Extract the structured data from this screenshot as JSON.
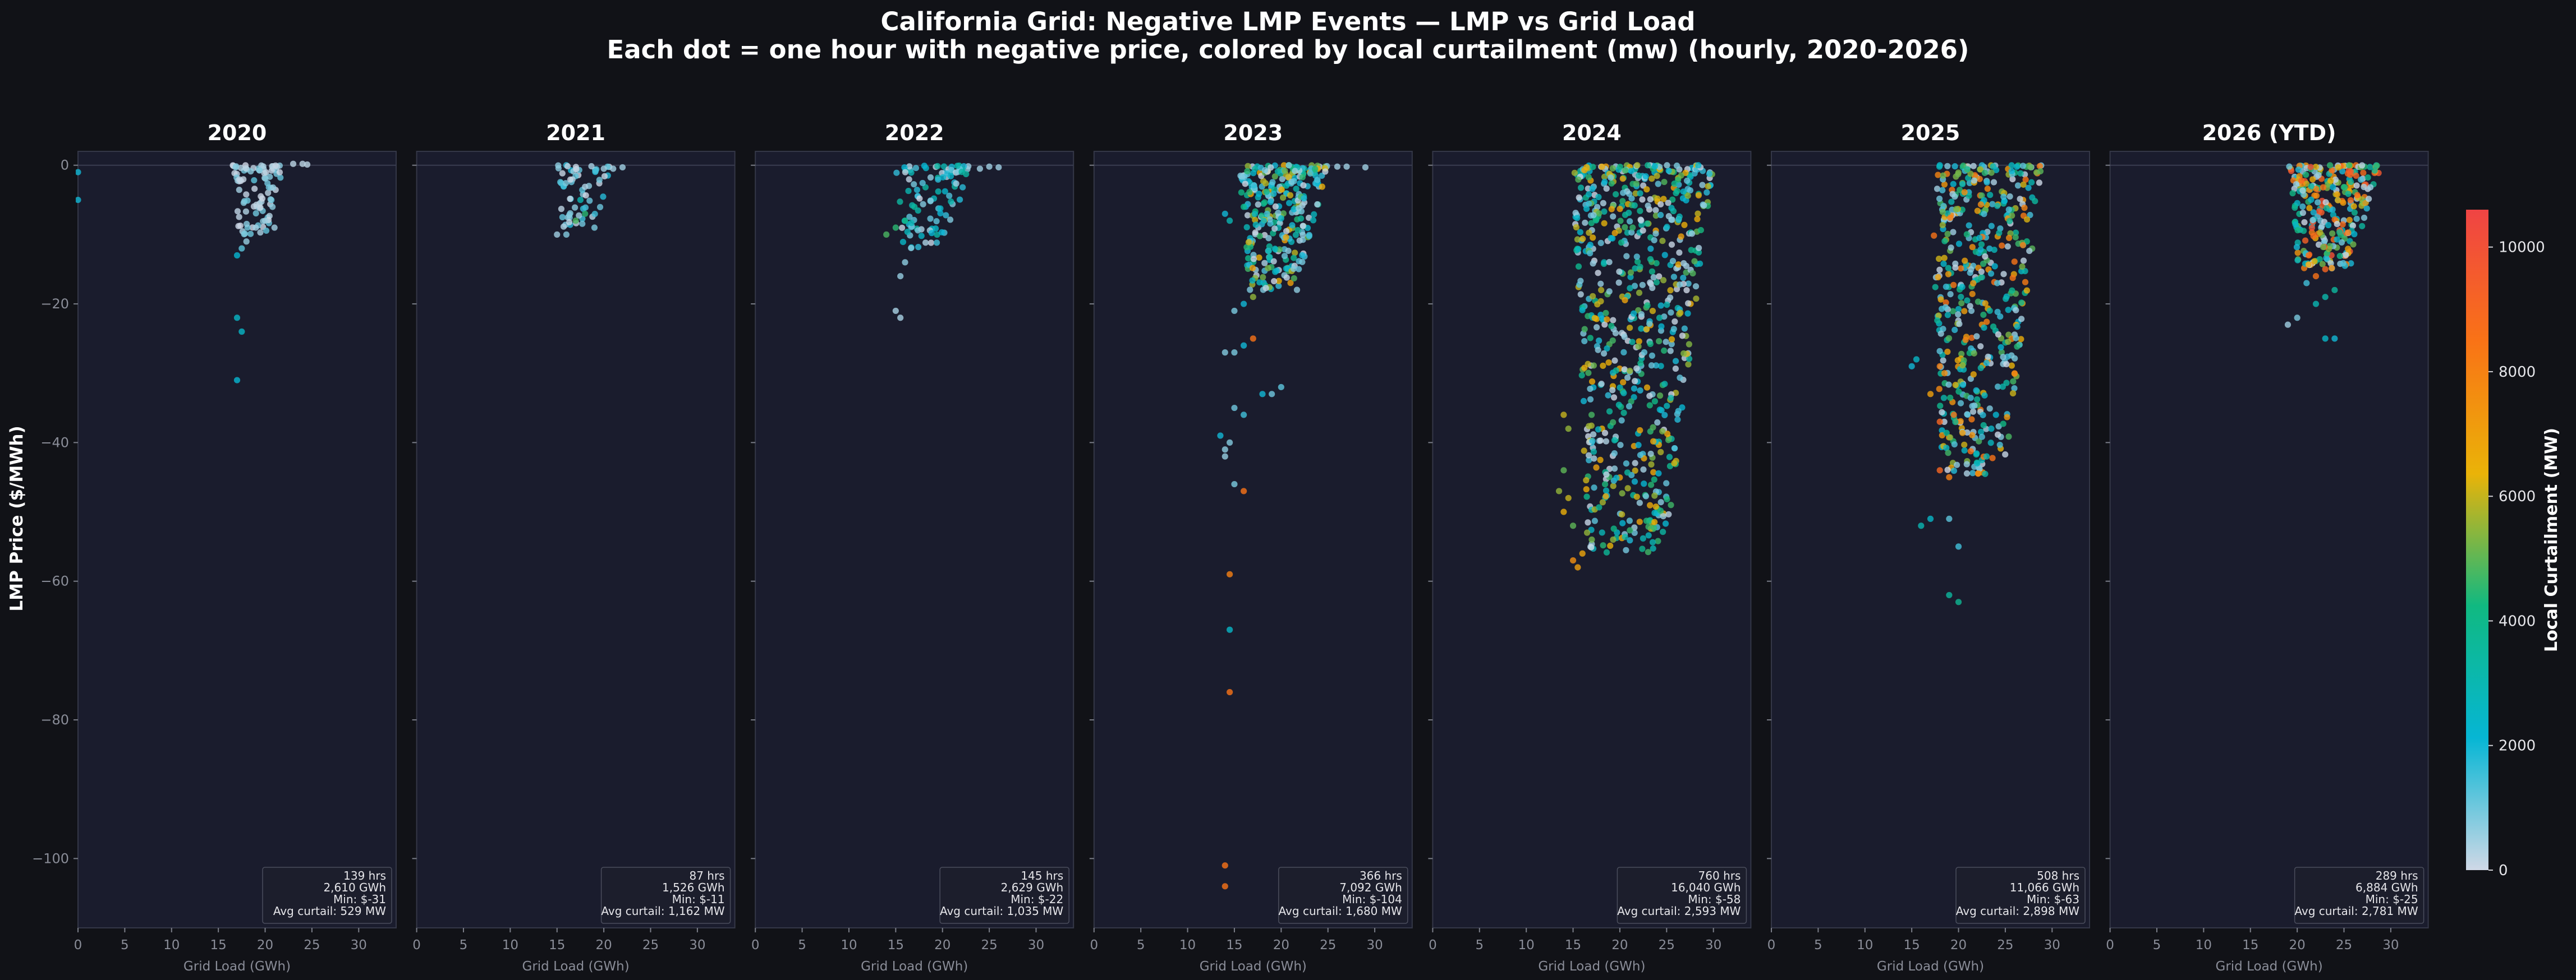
{
  "chart_data": {
    "type": "scatter",
    "title": "California Grid: Negative LMP Events — LMP vs Grid Load",
    "subtitle": "Each dot = one hour with negative price, colored by local curtailment (mw) (hourly, 2020-2026)",
    "ylabel": "LMP Price ($/MWh)",
    "xlabel": "Grid Load (GWh)",
    "xlim": [
      0,
      34
    ],
    "ylim": [
      -110,
      2
    ],
    "x_ticks": [
      "0",
      "5",
      "10",
      "15",
      "20",
      "25",
      "30"
    ],
    "y_ticks": [
      "0",
      "−20",
      "−40",
      "−60",
      "−80",
      "−100"
    ],
    "grid": false,
    "colorbar": {
      "label": "Local Curtailment (MW)",
      "range": [
        0,
        10600
      ],
      "ticks": [
        "0",
        "2000",
        "4000",
        "6000",
        "8000",
        "10000"
      ],
      "stops": [
        "#cfd8e6",
        "#06b6d4",
        "#10b981",
        "#eab308",
        "#f97316",
        "#ef4444"
      ]
    },
    "panels": [
      {
        "title": "2020",
        "stats": [
          "139 hrs",
          "2,610 GWh",
          "Min: $-31",
          "Avg curtail: 529 MW"
        ],
        "points": [
          [
            0,
            -1,
            2000
          ],
          [
            0,
            -5,
            2000
          ],
          [
            17,
            -22,
            2500
          ],
          [
            17.5,
            -24,
            2500
          ],
          [
            17,
            -31,
            2200
          ],
          [
            17,
            -13,
            2200
          ],
          [
            17.5,
            -12,
            1200
          ],
          [
            18,
            -11,
            600
          ],
          [
            19,
            -9,
            500
          ],
          [
            20,
            -8,
            500
          ],
          [
            21,
            -9,
            500
          ]
        ],
        "cluster": {
          "xmin": 16.5,
          "xmax": 22,
          "ymin": -10,
          "ymax": 0,
          "n": 90,
          "cmax": 1200,
          "extra": [
            [
              23,
              0.2,
              200
            ],
            [
              24,
              0.2,
              200
            ],
            [
              24.5,
              0.1,
              200
            ]
          ]
        }
      },
      {
        "title": "2021",
        "stats": [
          "87 hrs",
          "1,526 GWh",
          "Min: $-11",
          "Avg curtail: 1,162 MW"
        ],
        "points": [
          [
            15,
            -10,
            500
          ],
          [
            16,
            -10,
            800
          ],
          [
            17,
            -8,
            4800
          ],
          [
            18,
            -7,
            4500
          ],
          [
            17.5,
            -5,
            3000
          ],
          [
            19,
            -9,
            900
          ],
          [
            20,
            -0.5,
            500
          ],
          [
            21,
            -0.5,
            500
          ],
          [
            22,
            -0.3,
            500
          ]
        ],
        "cluster": {
          "xmin": 15,
          "xmax": 21,
          "ymin": -9,
          "ymax": 0,
          "n": 60,
          "cmax": 2000,
          "extra": []
        }
      },
      {
        "title": "2022",
        "stats": [
          "145 hrs",
          "2,629 GWh",
          "Min: $-22",
          "Avg curtail: 1,035 MW"
        ],
        "points": [
          [
            15,
            -21,
            400
          ],
          [
            15.5,
            -22,
            400
          ],
          [
            14,
            -10,
            4800
          ],
          [
            15,
            -9,
            4500
          ],
          [
            16,
            -8,
            4200
          ],
          [
            17,
            -6,
            3500
          ],
          [
            24,
            -0.5,
            500
          ],
          [
            25,
            -0.2,
            500
          ],
          [
            26,
            -0.3,
            500
          ],
          [
            15.5,
            -16,
            600
          ],
          [
            16,
            -14,
            700
          ]
        ],
        "cluster": {
          "xmin": 15,
          "xmax": 23,
          "ymin": -12,
          "ymax": 0,
          "n": 100,
          "cmax": 3500,
          "extra": []
        }
      },
      {
        "title": "2023",
        "stats": [
          "366 hrs",
          "7,092 GWh",
          "Min: $-104",
          "Avg curtail: 1,680 MW"
        ],
        "points": [
          [
            14,
            -101,
            8500
          ],
          [
            14,
            -104,
            8500
          ],
          [
            14.5,
            -76,
            8500
          ],
          [
            14.5,
            -67,
            2500
          ],
          [
            14.5,
            -59,
            8000
          ],
          [
            15,
            -46,
            900
          ],
          [
            16,
            -47,
            8500
          ],
          [
            14,
            -42,
            600
          ],
          [
            14,
            -41,
            700
          ],
          [
            14.5,
            -40,
            800
          ],
          [
            13.5,
            -39,
            2000
          ],
          [
            15,
            -35,
            1000
          ],
          [
            16,
            -36,
            1500
          ],
          [
            14,
            -27,
            800
          ],
          [
            15,
            -27,
            900
          ],
          [
            16,
            -26,
            2000
          ],
          [
            17,
            -25,
            8500
          ],
          [
            18,
            -33,
            2000
          ],
          [
            19,
            -33,
            1000
          ],
          [
            20,
            -32,
            1200
          ],
          [
            17,
            -19,
            5500
          ],
          [
            16,
            -20,
            2000
          ],
          [
            15,
            -21,
            900
          ],
          [
            14,
            -7,
            2000
          ],
          [
            14.5,
            -8,
            3000
          ],
          [
            16,
            -6,
            4000
          ]
        ],
        "cluster": {
          "xmin": 15.5,
          "xmax": 25,
          "ymin": -18,
          "ymax": 0,
          "n": 300,
          "cmax": 7000,
          "extra": [
            [
              26,
              -0.2,
              500
            ],
            [
              27,
              -0.2,
              500
            ],
            [
              29,
              -0.3,
              500
            ]
          ]
        }
      },
      {
        "title": "2024",
        "stats": [
          "760 hrs",
          "16,040 GWh",
          "Min: $-58",
          "Avg curtail: 2,593 MW"
        ],
        "points": [
          [
            15,
            -57,
            7500
          ],
          [
            15.5,
            -58,
            7000
          ],
          [
            16,
            -56,
            6800
          ],
          [
            14,
            -50,
            6500
          ],
          [
            14.5,
            -48,
            6000
          ],
          [
            15,
            -52,
            5000
          ],
          [
            16.5,
            -53,
            5500
          ],
          [
            17,
            -54,
            5200
          ],
          [
            13.5,
            -47,
            5500
          ],
          [
            14,
            -44,
            5000
          ],
          [
            14,
            -36,
            6000
          ],
          [
            14.5,
            -38,
            5500
          ]
        ],
        "cluster": {
          "xmin": 15,
          "xmax": 30,
          "ymin": -56,
          "ymax": 0,
          "n": 700,
          "cmax": 7000,
          "extra": []
        }
      },
      {
        "title": "2025",
        "stats": [
          "508 hrs",
          "11,066 GWh",
          "Min: $-63",
          "Avg curtail: 2,898 MW"
        ],
        "points": [
          [
            19,
            -62,
            3500
          ],
          [
            20,
            -63,
            3800
          ],
          [
            20,
            -55,
            1500
          ],
          [
            17,
            -51,
            2500
          ],
          [
            16,
            -52,
            3000
          ],
          [
            19,
            -51,
            1200
          ],
          [
            18,
            -44,
            9000
          ],
          [
            19,
            -45,
            8000
          ],
          [
            18,
            -37,
            9000
          ],
          [
            19.5,
            -36,
            8500
          ],
          [
            17,
            -33,
            7000
          ],
          [
            18,
            -29,
            8000
          ],
          [
            18.5,
            -30,
            7500
          ],
          [
            15.5,
            -28,
            2500
          ],
          [
            15,
            -29,
            2000
          ],
          [
            22,
            -43,
            2500
          ],
          [
            23,
            -42,
            3000
          ],
          [
            23.5,
            -38,
            2500
          ],
          [
            24,
            -36,
            2200
          ]
        ],
        "cluster": {
          "xmin": 17,
          "xmax": 29,
          "ymin": -45,
          "ymax": 0,
          "n": 480,
          "cmax": 8500,
          "extra": []
        }
      },
      {
        "title": "2026 (YTD)",
        "stats": [
          "289 hrs",
          "6,884 GWh",
          "Min: $-25",
          "Avg curtail: 2,781 MW"
        ],
        "points": [
          [
            19,
            -23,
            500
          ],
          [
            20,
            -22,
            900
          ],
          [
            23,
            -25,
            2500
          ],
          [
            24,
            -25,
            2000
          ],
          [
            22,
            -20,
            3000
          ],
          [
            23,
            -19,
            3200
          ],
          [
            24,
            -18,
            3500
          ],
          [
            21,
            -17,
            1500
          ],
          [
            22,
            -16,
            8500
          ],
          [
            23,
            -15,
            9000
          ]
        ],
        "cluster": {
          "xmin": 19,
          "xmax": 29,
          "ymin": -15,
          "ymax": 0,
          "n": 280,
          "cmax": 10000,
          "extra": []
        }
      }
    ]
  }
}
